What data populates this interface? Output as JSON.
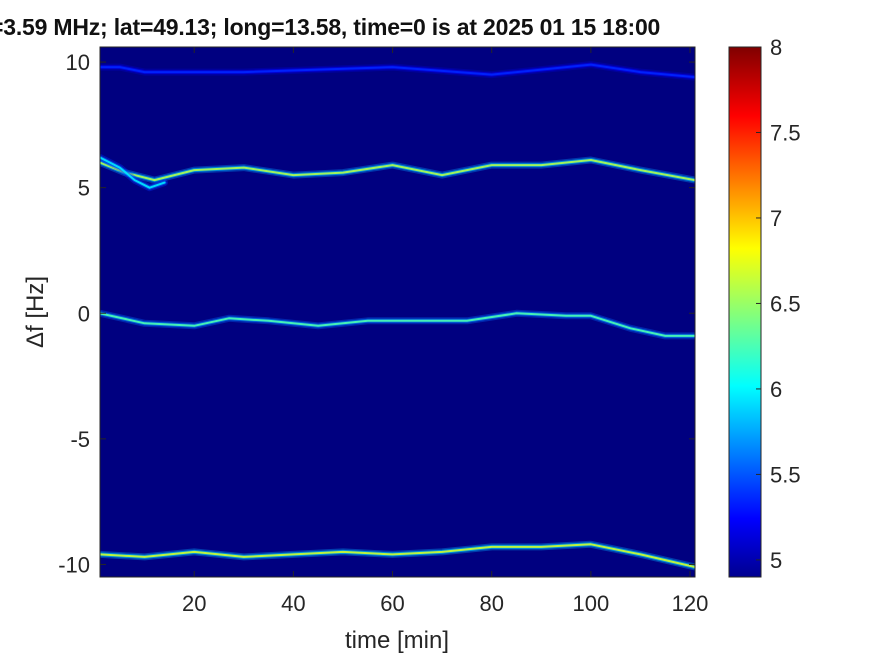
{
  "chart_data": {
    "type": "heatmap",
    "title": "=3.59 MHz;  lat=49.13; long=13.58, time=0 is at 2025 01 15 18:00",
    "xlabel": "time [min]",
    "ylabel": "Δf [Hz]",
    "xlim": [
      1,
      121
    ],
    "ylim": [
      -10.5,
      10.6
    ],
    "x_ticks": [
      20,
      40,
      60,
      80,
      100,
      120
    ],
    "y_ticks": [
      -10,
      -5,
      0,
      5,
      10
    ],
    "grid": false,
    "colorbar": {
      "range": [
        4.9,
        8
      ],
      "ticks": [
        5,
        5.5,
        6,
        6.5,
        7,
        7.5,
        8
      ],
      "colormap": "jet",
      "label": ""
    },
    "background_value": 4.9,
    "traces": [
      {
        "points": [
          [
            1,
            6.0
          ],
          [
            6,
            5.6
          ],
          [
            12,
            5.3
          ],
          [
            20,
            5.7
          ],
          [
            30,
            5.8
          ],
          [
            40,
            5.5
          ],
          [
            50,
            5.6
          ],
          [
            60,
            5.9
          ],
          [
            70,
            5.5
          ],
          [
            80,
            5.9
          ],
          [
            90,
            5.9
          ],
          [
            100,
            6.1
          ],
          [
            110,
            5.7
          ],
          [
            121,
            5.3
          ]
        ],
        "peak": 6.6
      },
      {
        "points": [
          [
            1,
            6.2
          ],
          [
            5,
            5.8
          ],
          [
            8,
            5.3
          ],
          [
            11,
            5.0
          ],
          [
            14,
            5.2
          ]
        ],
        "peak": 6.0
      },
      {
        "points": [
          [
            1,
            0.0
          ],
          [
            10,
            -0.4
          ],
          [
            20,
            -0.5
          ],
          [
            27,
            -0.2
          ],
          [
            35,
            -0.3
          ],
          [
            45,
            -0.5
          ],
          [
            55,
            -0.3
          ],
          [
            65,
            -0.3
          ],
          [
            75,
            -0.3
          ],
          [
            85,
            0.0
          ],
          [
            95,
            -0.1
          ],
          [
            100,
            -0.1
          ],
          [
            108,
            -0.6
          ],
          [
            115,
            -0.9
          ],
          [
            121,
            -0.9
          ]
        ],
        "peak": 6.3
      },
      {
        "points": [
          [
            1,
            -9.6
          ],
          [
            10,
            -9.7
          ],
          [
            20,
            -9.5
          ],
          [
            30,
            -9.7
          ],
          [
            40,
            -9.6
          ],
          [
            50,
            -9.5
          ],
          [
            60,
            -9.6
          ],
          [
            70,
            -9.5
          ],
          [
            80,
            -9.3
          ],
          [
            90,
            -9.3
          ],
          [
            100,
            -9.2
          ],
          [
            110,
            -9.6
          ],
          [
            121,
            -10.1
          ]
        ],
        "peak": 6.7
      },
      {
        "points": [
          [
            1,
            9.8
          ],
          [
            5,
            9.8
          ],
          [
            10,
            9.6
          ],
          [
            30,
            9.6
          ],
          [
            60,
            9.8
          ],
          [
            80,
            9.5
          ],
          [
            100,
            9.9
          ],
          [
            110,
            9.6
          ],
          [
            121,
            9.4
          ]
        ],
        "peak": 5.4
      }
    ]
  }
}
